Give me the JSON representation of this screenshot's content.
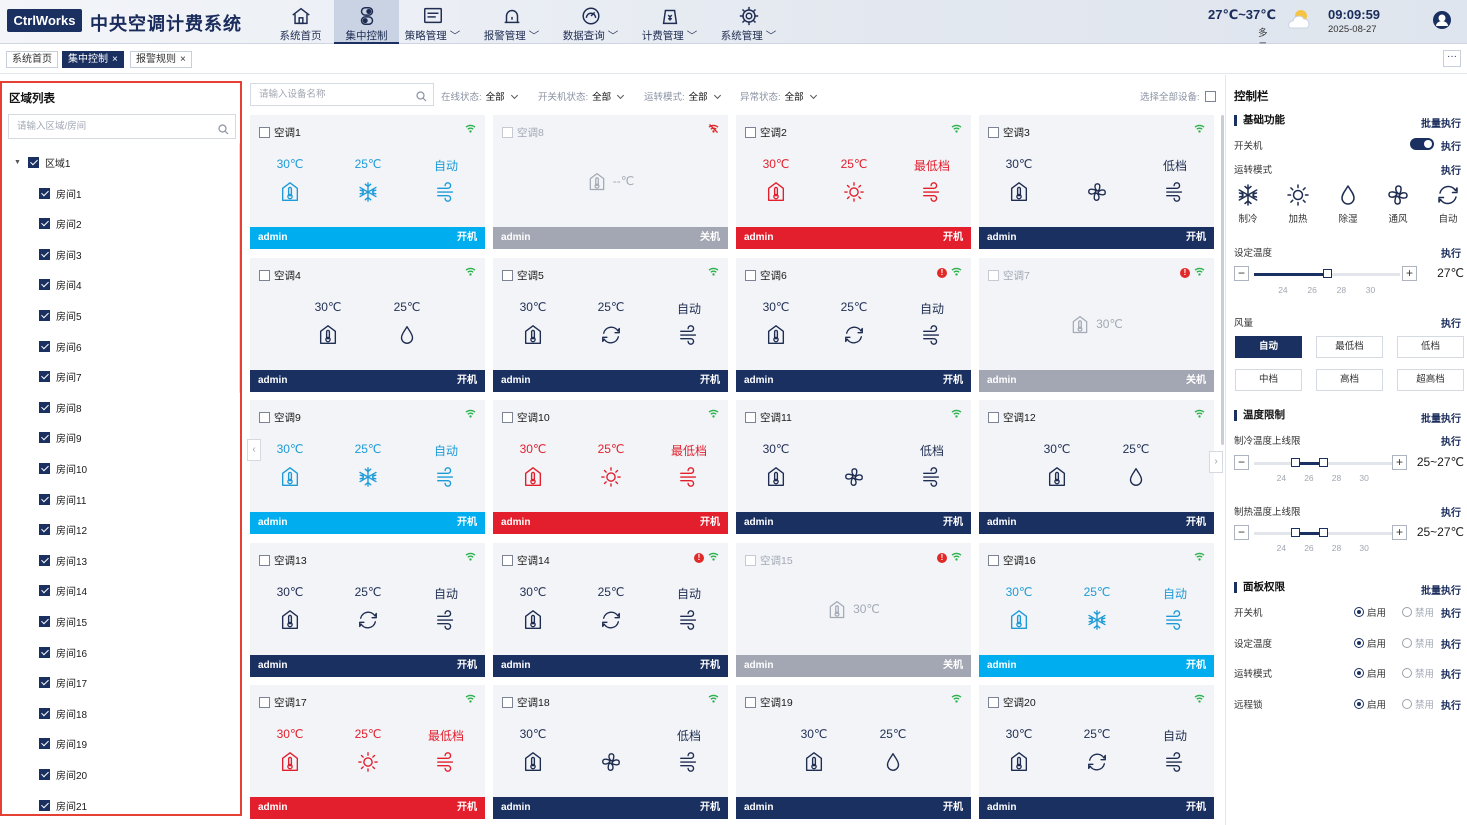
{
  "header": {
    "logo": "CtrlWorks",
    "title": "中央空调计费系统",
    "nav": [
      {
        "label": "系统首页",
        "icon": "home-icon",
        "dropdown": false,
        "active": false
      },
      {
        "label": "集中控制",
        "icon": "control-icon",
        "dropdown": false,
        "active": true
      },
      {
        "label": "策略管理",
        "icon": "strategy-icon",
        "dropdown": true,
        "active": false
      },
      {
        "label": "报警管理",
        "icon": "alarm-icon",
        "dropdown": true,
        "active": false
      },
      {
        "label": "数据查询",
        "icon": "data-query-icon",
        "dropdown": true,
        "active": false
      },
      {
        "label": "计费管理",
        "icon": "billing-icon",
        "dropdown": true,
        "active": false
      },
      {
        "label": "系统管理",
        "icon": "settings-icon",
        "dropdown": true,
        "active": false
      }
    ],
    "weather": {
      "temp": "27℃~37℃",
      "desc": "多云",
      "icon": "partly-cloudy-icon"
    },
    "time": "09:09:59",
    "date": "2025-08-27"
  },
  "tabs": [
    {
      "label": "系统首页",
      "closable": false,
      "active": false
    },
    {
      "label": "集中控制",
      "closable": true,
      "active": true
    },
    {
      "label": "报警规则",
      "closable": true,
      "active": false
    }
  ],
  "more_label": "···",
  "left_panel": {
    "title": "区域列表",
    "search_placeholder": "请输入区域/房间",
    "region": "区域1",
    "rooms": [
      "房间1",
      "房间2",
      "房间3",
      "房间4",
      "房间5",
      "房间6",
      "房间7",
      "房间8",
      "房间9",
      "房间10",
      "房间11",
      "房间12",
      "房间13",
      "房间14",
      "房间15",
      "房间16",
      "房间17",
      "房间18",
      "房间19",
      "房间20",
      "房间21"
    ]
  },
  "filters": {
    "search_placeholder": "请输入设备名称",
    "items": [
      {
        "label": "在线状态:",
        "value": "全部"
      },
      {
        "label": "开关机状态:",
        "value": "全部"
      },
      {
        "label": "运转模式:",
        "value": "全部"
      },
      {
        "label": "异常状态:",
        "value": "全部"
      }
    ],
    "select_all": "选择全部设备:"
  },
  "colors": {
    "navy": "#1a3060",
    "cyan": "#00aeef",
    "red": "#e31e2d",
    "gray": "#a3a6b3",
    "blue_text": "#1d9bd8",
    "red_text": "#e31e2d",
    "dark_text": "#1f2d52"
  },
  "cards": [
    {
      "name": "空调1",
      "online": true,
      "error": false,
      "power": "开机",
      "theme": "cyan",
      "temp": "30℃",
      "set": "25℃",
      "fan": "自动",
      "mode": "cool",
      "user": "admin"
    },
    {
      "name": "空调8",
      "online": false,
      "error": false,
      "power": "关机",
      "theme": "gray",
      "temp": "--℃",
      "user": "admin"
    },
    {
      "name": "空调2",
      "online": true,
      "error": false,
      "power": "开机",
      "theme": "red",
      "temp": "30℃",
      "set": "25℃",
      "fan": "最低档",
      "mode": "heat",
      "user": "admin"
    },
    {
      "name": "空调3",
      "online": true,
      "error": false,
      "power": "开机",
      "theme": "navy",
      "temp": "30℃",
      "set": "",
      "fan": "低档",
      "mode": "fan",
      "user": "admin"
    },
    {
      "name": "空调4",
      "online": true,
      "error": false,
      "power": "开机",
      "theme": "navy",
      "temp": "30℃",
      "set": "25℃",
      "fan": "",
      "mode": "dry",
      "user": "admin"
    },
    {
      "name": "空调5",
      "online": true,
      "error": false,
      "power": "开机",
      "theme": "navy",
      "temp": "30℃",
      "set": "25℃",
      "fan": "自动",
      "mode": "auto",
      "user": "admin"
    },
    {
      "name": "空调6",
      "online": true,
      "error": true,
      "power": "开机",
      "theme": "navy",
      "temp": "30℃",
      "set": "25℃",
      "fan": "自动",
      "mode": "auto",
      "user": "admin"
    },
    {
      "name": "空调7",
      "online": true,
      "error": true,
      "power": "关机",
      "theme": "gray",
      "temp": "30℃",
      "user": "admin"
    },
    {
      "name": "空调9",
      "online": true,
      "error": false,
      "power": "开机",
      "theme": "cyan",
      "temp": "30℃",
      "set": "25℃",
      "fan": "自动",
      "mode": "cool",
      "user": "admin"
    },
    {
      "name": "空调10",
      "online": true,
      "error": false,
      "power": "开机",
      "theme": "red",
      "temp": "30℃",
      "set": "25℃",
      "fan": "最低档",
      "mode": "heat",
      "user": "admin"
    },
    {
      "name": "空调11",
      "online": true,
      "error": false,
      "power": "开机",
      "theme": "navy",
      "temp": "30℃",
      "set": "",
      "fan": "低档",
      "mode": "fan",
      "user": "admin"
    },
    {
      "name": "空调12",
      "online": true,
      "error": false,
      "power": "开机",
      "theme": "navy",
      "temp": "30℃",
      "set": "25℃",
      "fan": "",
      "mode": "dry",
      "user": "admin"
    },
    {
      "name": "空调13",
      "online": true,
      "error": false,
      "power": "开机",
      "theme": "navy",
      "temp": "30℃",
      "set": "25℃",
      "fan": "自动",
      "mode": "auto",
      "user": "admin"
    },
    {
      "name": "空调14",
      "online": true,
      "error": true,
      "power": "开机",
      "theme": "navy",
      "temp": "30℃",
      "set": "25℃",
      "fan": "自动",
      "mode": "auto",
      "user": "admin"
    },
    {
      "name": "空调15",
      "online": true,
      "error": true,
      "power": "关机",
      "theme": "gray",
      "temp": "30℃",
      "user": "admin"
    },
    {
      "name": "空调16",
      "online": true,
      "error": false,
      "power": "开机",
      "theme": "cyan",
      "temp": "30℃",
      "set": "25℃",
      "fan": "自动",
      "mode": "cool",
      "user": "admin"
    },
    {
      "name": "空调17",
      "online": true,
      "error": false,
      "power": "开机",
      "theme": "red",
      "temp": "30℃",
      "set": "25℃",
      "fan": "最低档",
      "mode": "heat",
      "user": "admin"
    },
    {
      "name": "空调18",
      "online": true,
      "error": false,
      "power": "开机",
      "theme": "navy",
      "temp": "30℃",
      "set": "",
      "fan": "低档",
      "mode": "fan",
      "user": "admin"
    },
    {
      "name": "空调19",
      "online": true,
      "error": false,
      "power": "开机",
      "theme": "navy",
      "temp": "30℃",
      "set": "25℃",
      "fan": "",
      "mode": "dry",
      "user": "admin"
    },
    {
      "name": "空调20",
      "online": true,
      "error": false,
      "power": "开机",
      "theme": "navy",
      "temp": "30℃",
      "set": "25℃",
      "fan": "自动",
      "mode": "auto",
      "user": "admin"
    }
  ],
  "right_panel": {
    "title": "控制栏",
    "basic": {
      "title": "基础功能",
      "batch": "批量执行",
      "power_label": "开关机",
      "power_on": true,
      "exec": "执行",
      "mode_label": "运转模式",
      "modes": [
        {
          "label": "制冷",
          "icon": "snowflake-icon"
        },
        {
          "label": "加热",
          "icon": "sun-icon"
        },
        {
          "label": "除湿",
          "icon": "droplet-icon"
        },
        {
          "label": "通风",
          "icon": "fan-icon"
        },
        {
          "label": "自动",
          "icon": "auto-icon"
        }
      ],
      "set_temp_label": "设定温度",
      "set_temp": {
        "min": 22,
        "max": 32,
        "value": 27,
        "display": "27℃",
        "ticks": [
          "24",
          "26",
          "28",
          "30"
        ]
      },
      "fan_label": "风量",
      "fan_speeds": [
        "自动",
        "最低档",
        "低档",
        "中档",
        "高档",
        "超高档"
      ],
      "fan_selected": "自动"
    },
    "limit": {
      "title": "温度限制",
      "batch": "批量执行",
      "cool_label": "制冷温度上线限",
      "cool_range": [
        25,
        27
      ],
      "cool_display": "25~27℃",
      "heat_label": "制热温度上线限",
      "heat_range": [
        25,
        27
      ],
      "heat_display": "25~27℃",
      "ticks": [
        "24",
        "26",
        "28",
        "30"
      ]
    },
    "perm": {
      "title": "面板权限",
      "batch": "批量执行",
      "enable": "启用",
      "disable": "禁用",
      "items": [
        "开关机",
        "设定温度",
        "运转模式",
        "远程锁"
      ]
    }
  }
}
